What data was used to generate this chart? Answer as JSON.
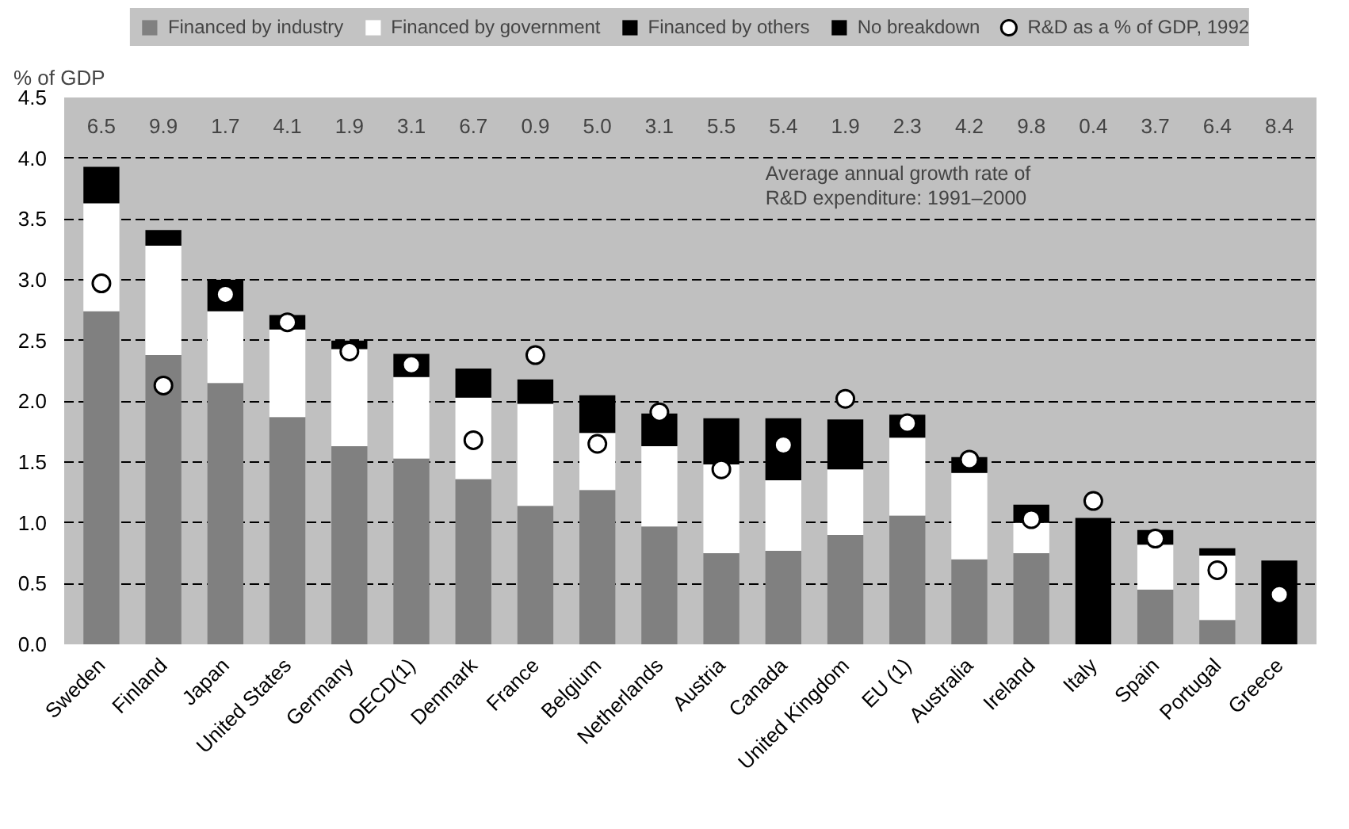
{
  "chart_data": {
    "type": "bar",
    "stacked": true,
    "ylabel": "% of GDP",
    "categories": [
      "Sweden",
      "Finland",
      "Japan",
      "United States",
      "Germany",
      "OECD(1)",
      "Denmark",
      "France",
      "Belgium",
      "Netherlands",
      "Austria",
      "Canada",
      "United Kingdom",
      "EU (1)",
      "Australia",
      "Ireland",
      "Italy",
      "Spain",
      "Portugal",
      "Greece"
    ],
    "series": [
      {
        "name": "Financed by industry",
        "color": "#808080",
        "values": [
          2.74,
          2.38,
          2.15,
          1.87,
          1.63,
          1.53,
          1.36,
          1.14,
          1.27,
          0.97,
          0.75,
          0.77,
          0.9,
          1.06,
          0.7,
          0.75,
          null,
          0.45,
          0.2,
          null
        ]
      },
      {
        "name": "Financed by government",
        "color": "#ffffff",
        "values": [
          0.89,
          0.9,
          0.59,
          0.72,
          0.8,
          0.67,
          0.67,
          0.84,
          0.47,
          0.66,
          0.73,
          0.58,
          0.54,
          0.64,
          0.71,
          0.25,
          null,
          0.37,
          0.53,
          null
        ]
      },
      {
        "name": "Financed by others",
        "color": "#000000",
        "values": [
          0.3,
          0.13,
          0.26,
          0.12,
          0.07,
          0.19,
          0.24,
          0.2,
          0.31,
          0.27,
          0.38,
          0.51,
          0.41,
          0.19,
          0.13,
          0.15,
          null,
          0.12,
          0.06,
          null
        ]
      },
      {
        "name": "No breakdown",
        "color": "#000000",
        "values": [
          null,
          null,
          null,
          null,
          null,
          null,
          null,
          null,
          null,
          null,
          null,
          null,
          null,
          null,
          null,
          null,
          1.04,
          null,
          null,
          0.69
        ]
      },
      {
        "name": "R&D as a % of GDP, 1992",
        "type": "scatter",
        "marker": "circle",
        "color": "#ffffff",
        "values": [
          2.97,
          2.13,
          2.88,
          2.65,
          2.41,
          2.3,
          1.68,
          2.38,
          1.65,
          1.91,
          1.44,
          1.64,
          2.02,
          1.82,
          1.52,
          1.03,
          1.18,
          0.87,
          0.61,
          0.41
        ]
      }
    ],
    "ylim": [
      0,
      4.5
    ],
    "yticks": [
      {
        "value": 0,
        "label": "0.0"
      },
      0.5,
      {
        "value": 1,
        "label": "1.0"
      },
      1.5,
      {
        "value": 2,
        "label": "2.0"
      },
      2.5,
      {
        "value": 3,
        "label": "3.0"
      },
      3.5,
      {
        "value": 4,
        "label": "4.0"
      },
      4.5
    ],
    "grid": "y",
    "legend": "top",
    "annotations": [
      "Average annual growth rate of\nR&D expenditure: 1991–2000",
      "6.5",
      "9.9",
      "1.7",
      "4.1",
      "1.9",
      "3.1",
      "6.7",
      "0.9",
      "5.0",
      "3.1",
      "5.5",
      "5.4",
      "1.9",
      "2.3",
      "4.2",
      "9.8",
      "0.4",
      "3.7",
      "6.4",
      "8.4"
    ]
  }
}
